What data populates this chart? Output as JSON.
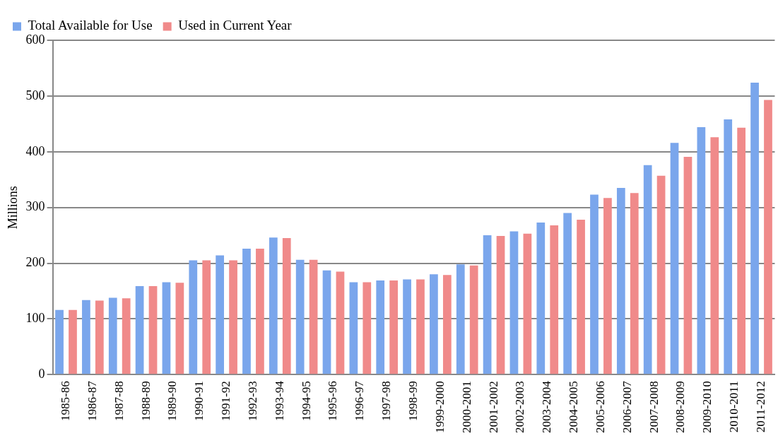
{
  "chart_data": {
    "type": "bar",
    "ylabel": "Millions",
    "categories": [
      "1985-86",
      "1986-87",
      "1987-88",
      "1988-89",
      "1989-90",
      "1990-91",
      "1991-92",
      "1992-93",
      "1993-94",
      "1994-95",
      "1995-96",
      "1996-97",
      "1997-98",
      "1998-99",
      "1999-2000",
      "2000-2001",
      "2001-2002",
      "2002-2003",
      "2003-2004",
      "2004-2005",
      "2005-2006",
      "2006-2007",
      "2007-2008",
      "2008-2009",
      "2009-2010",
      "2010-2011",
      "2011-2012"
    ],
    "series": [
      {
        "name": "Total Available for Use",
        "color": "#7aa6ec",
        "values": [
          116,
          134,
          138,
          159,
          166,
          205,
          214,
          226,
          246,
          206,
          187,
          166,
          169,
          171,
          180,
          198,
          250,
          257,
          273,
          290,
          323,
          335,
          376,
          416,
          444,
          458,
          524
        ]
      },
      {
        "name": "Used in Current Year",
        "color": "#f08a8a",
        "values": [
          116,
          133,
          137,
          159,
          165,
          205,
          205,
          226,
          245,
          206,
          185,
          166,
          169,
          171,
          179,
          196,
          249,
          253,
          268,
          278,
          317,
          326,
          357,
          391,
          426,
          443,
          493
        ]
      }
    ],
    "ylim": [
      0,
      600
    ],
    "yticks": [
      0,
      100,
      200,
      300,
      400,
      500,
      600
    ],
    "grid": "y",
    "legend": "top left"
  }
}
